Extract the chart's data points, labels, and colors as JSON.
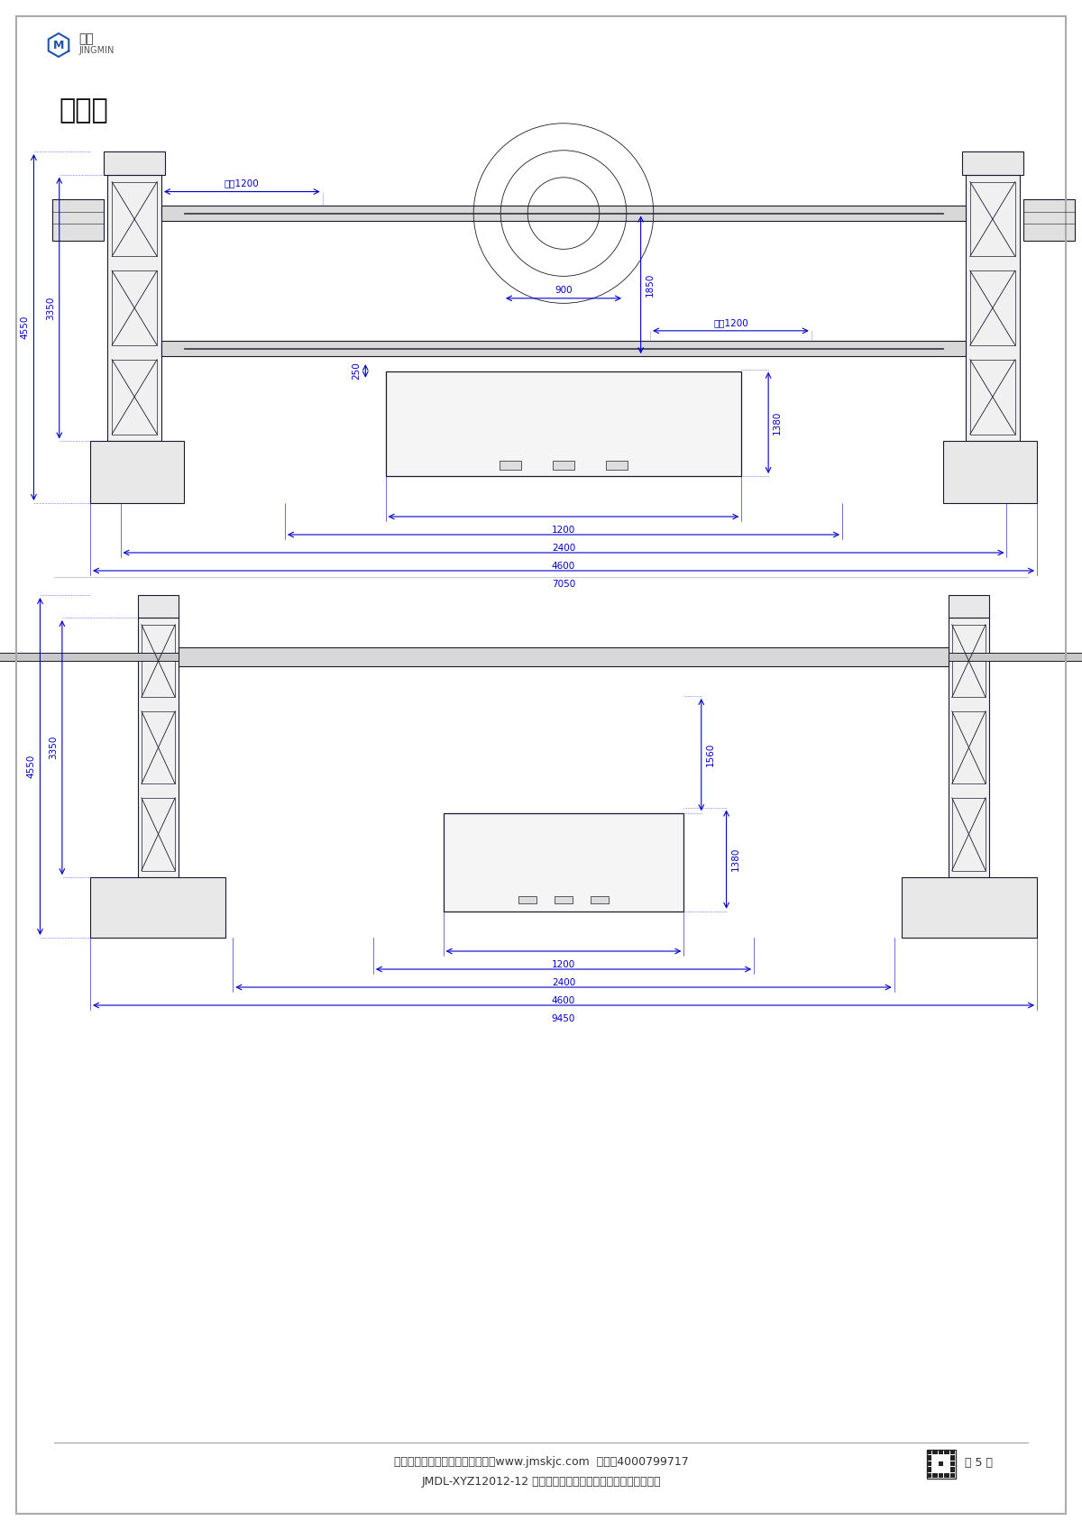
{
  "page_width": 12.0,
  "page_height": 16.97,
  "bg_color": "#ffffff",
  "drawing_color": "#1a1a2e",
  "dim_color": "#0000cc",
  "title_text": "示图：",
  "footer_line1": "湖北精明数控机床有限公司网站：www.jmskjc.com  企服：4000799717",
  "footer_line2": "JMDL-XYZ12012-12 中置数控双动柱卧式落地对置镗铣重型机床",
  "footer_page": "第 5 页",
  "top_view_dims": {
    "travel_x_top": "行程1200",
    "travel_x_bottom": "行程1200",
    "dim_900": "900",
    "dim_250": "250",
    "dim_1850": "1850",
    "dim_1380": "1380",
    "dim_4550": "4550",
    "dim_3350": "3350",
    "dim_1200_bottom": "1200",
    "dim_2400": "2400",
    "dim_4600": "4600",
    "dim_7050": "7050"
  },
  "bottom_view_dims": {
    "dim_4550": "4550",
    "dim_3350": "3350",
    "dim_1560": "1560",
    "dim_1380": "1380",
    "dim_1200_bottom": "1200",
    "dim_2400": "2400",
    "dim_4600": "4600",
    "dim_9450": "9450"
  }
}
